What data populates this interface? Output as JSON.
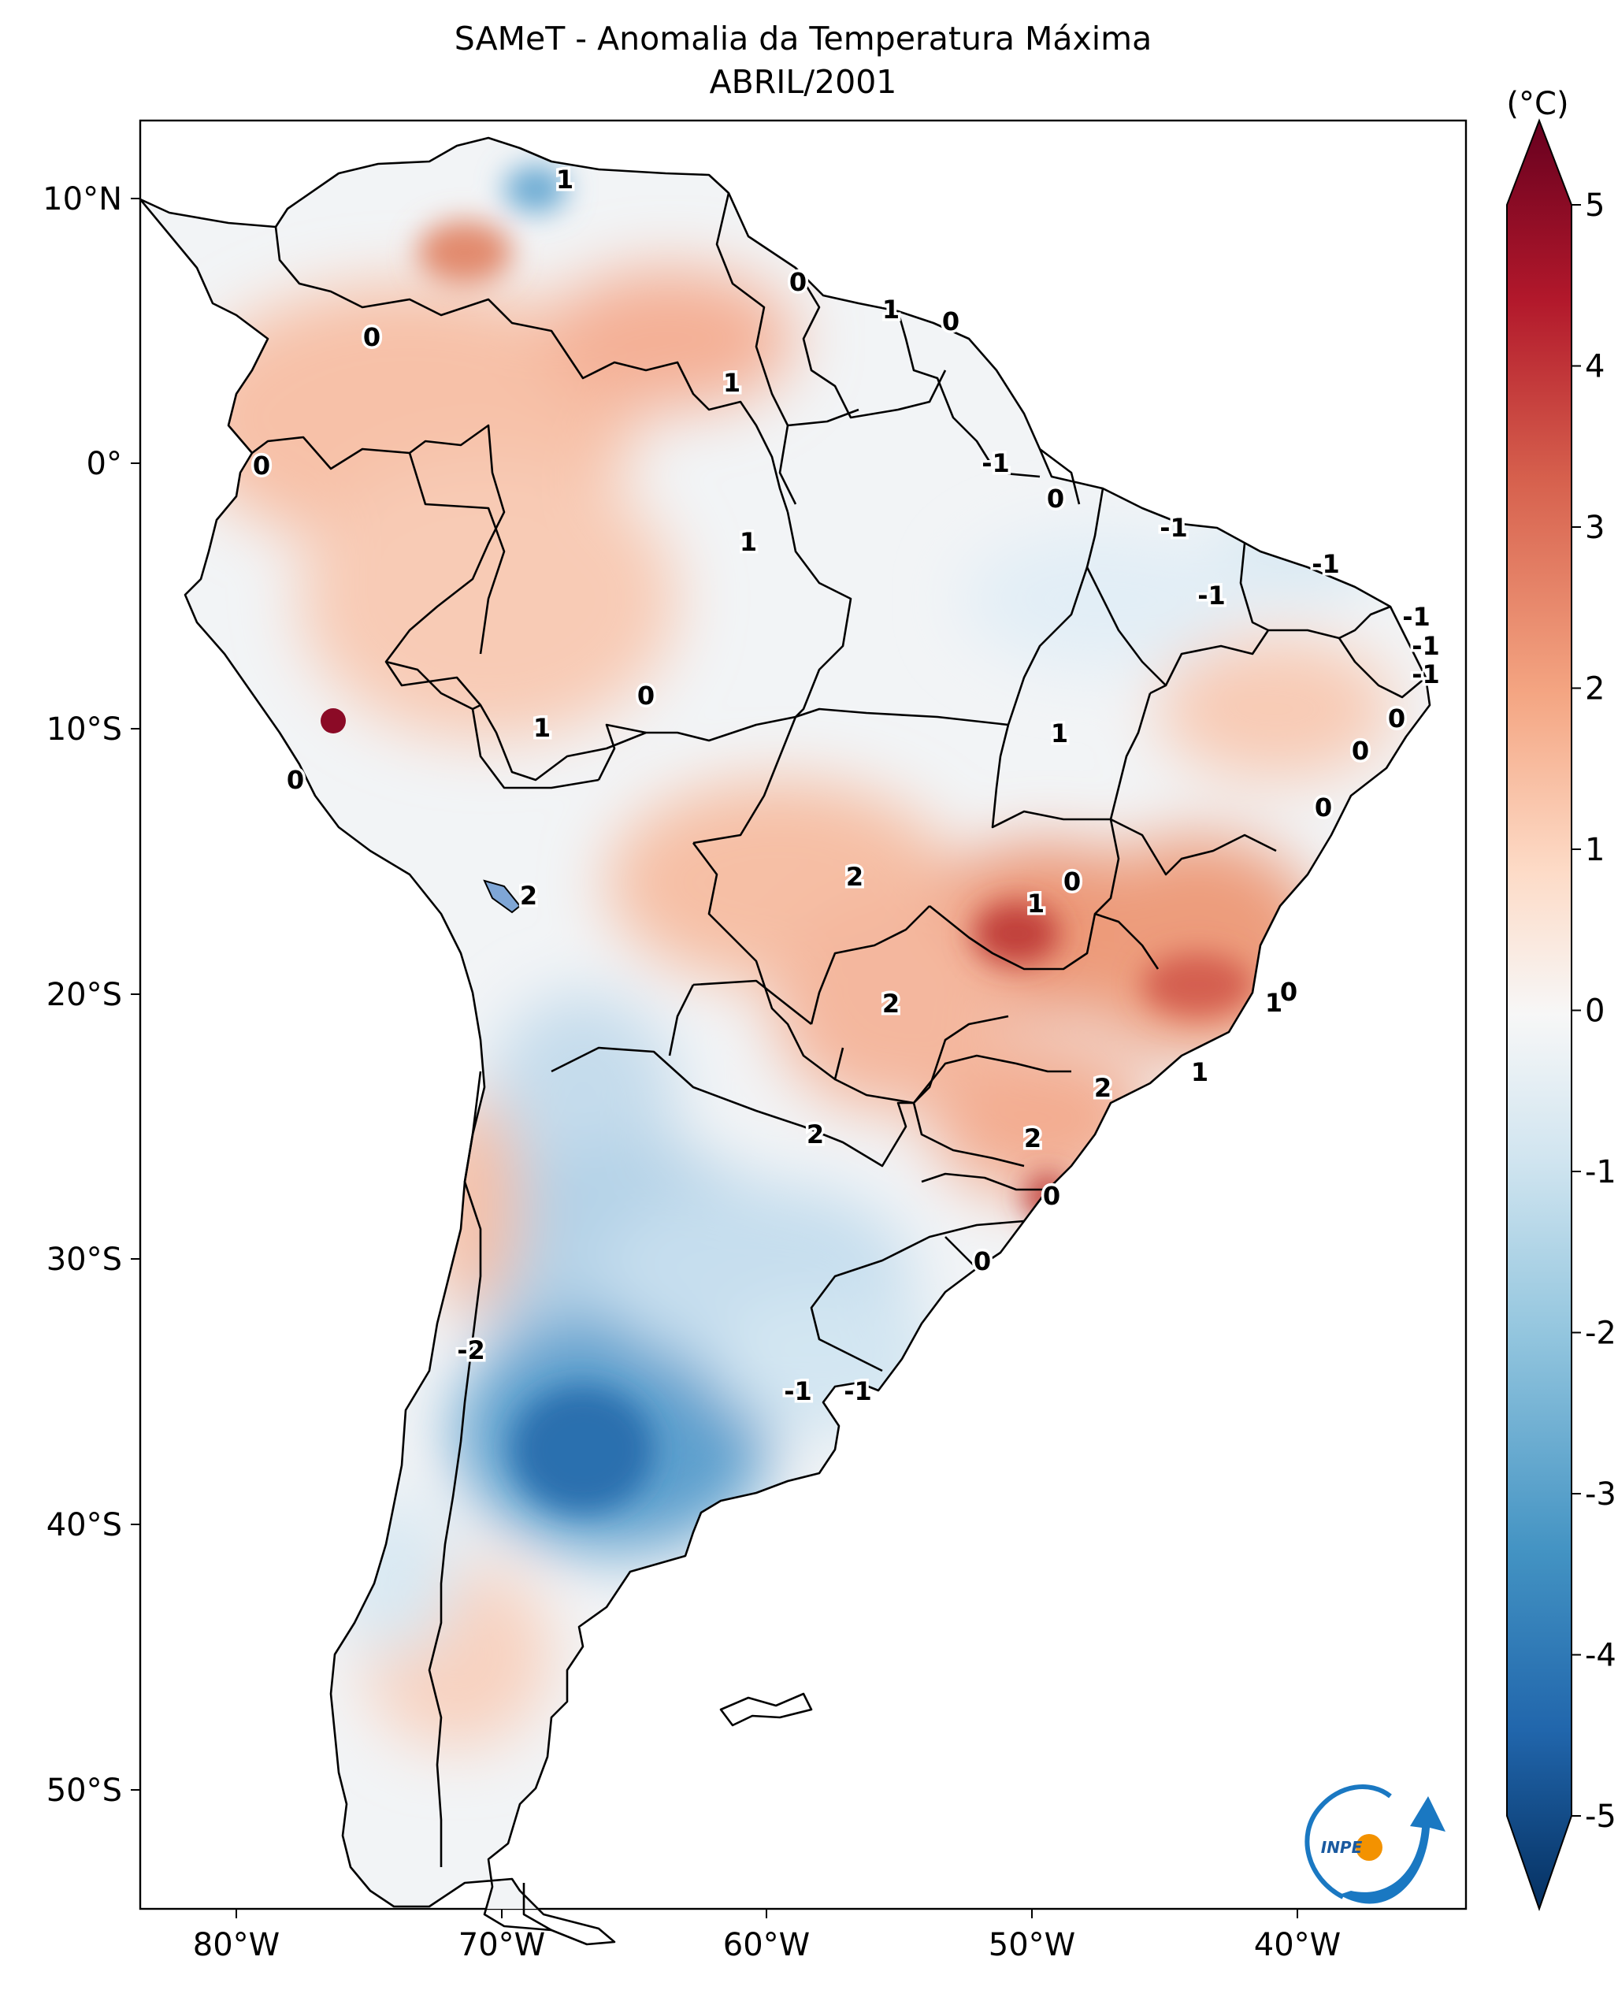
{
  "title": "SAMeT - Anomalia da Temperatura Máxima",
  "subtitle": "ABRIL/2001",
  "colorbar": {
    "unit": "(°C)",
    "ticks": [
      "5",
      "4",
      "3",
      "2",
      "1",
      "0",
      "-1",
      "-2",
      "-3",
      "-4",
      "-5"
    ],
    "colors": [
      "#67001f",
      "#b2182b",
      "#d6604d",
      "#f4a582",
      "#fddbc7",
      "#f7f7f7",
      "#d1e5f0",
      "#92c5de",
      "#4393c3",
      "#2166ac",
      "#053061"
    ]
  },
  "axes": {
    "lat_labels": [
      "10°N",
      "0°",
      "10°S",
      "20°S",
      "30°S",
      "40°S",
      "50°S"
    ],
    "lon_labels": [
      "80°W",
      "70°W",
      "60°W",
      "50°W",
      "40°W"
    ]
  },
  "contour_labels": [
    "1",
    "0",
    "1",
    "0",
    "0",
    "1",
    "1",
    "0",
    "-1",
    "0",
    "-1",
    "-1",
    "-1",
    "-1",
    "-1",
    "-1",
    "0",
    "0",
    "0",
    "0",
    "1",
    "0",
    "1",
    "0",
    "2",
    "1",
    "0",
    "2",
    "2",
    "1",
    "1",
    "2",
    "2",
    "2",
    "0",
    "0",
    "0",
    "-2",
    "-1",
    "-1"
  ],
  "logo": {
    "text": "INPE",
    "colors": [
      "#1a78c2",
      "#f39200"
    ]
  }
}
